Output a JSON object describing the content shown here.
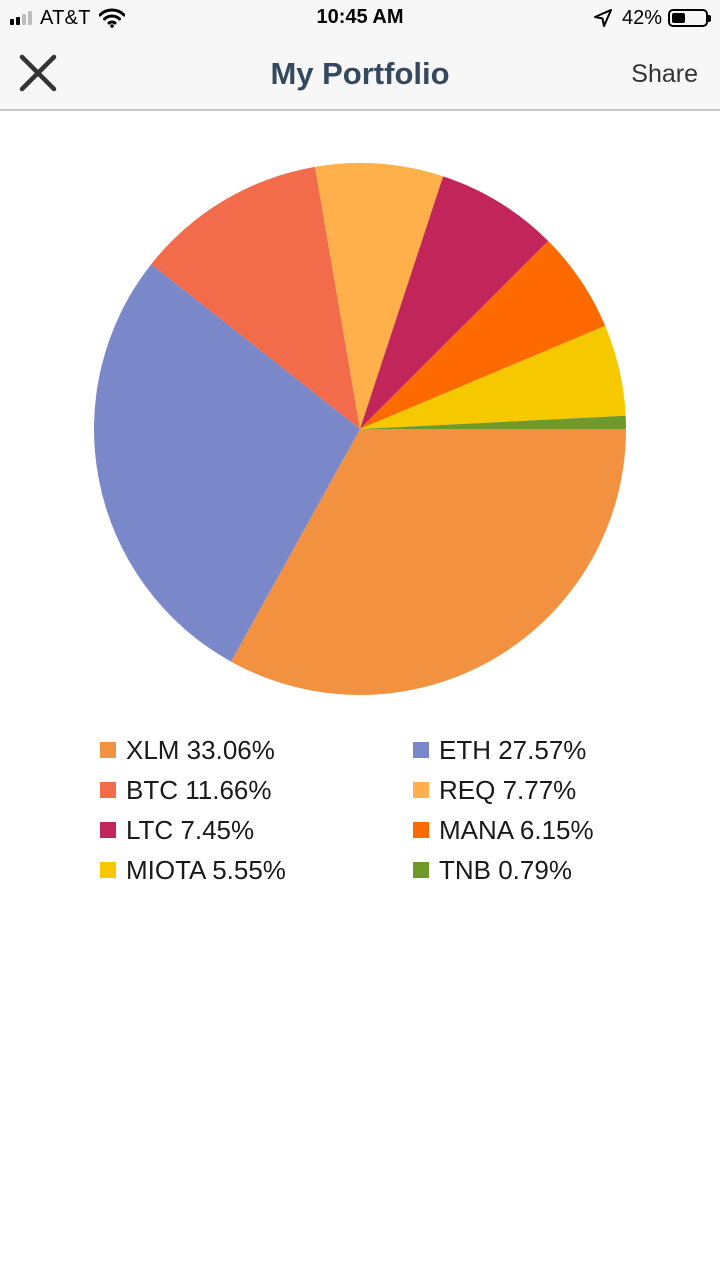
{
  "status_bar": {
    "carrier": "AT&T",
    "time": "10:45 AM",
    "battery_percent": "42%",
    "battery_level": 0.42,
    "signal_bars_active": 2,
    "signal_bars_total": 4
  },
  "nav": {
    "title": "My Portfolio",
    "share_label": "Share",
    "close_icon": "close-icon"
  },
  "chart_data": {
    "type": "pie",
    "title": "",
    "slices": [
      {
        "name": "XLM",
        "value": 33.06,
        "label": "XLM 33.06%",
        "color": "#F29240"
      },
      {
        "name": "ETH",
        "value": 27.57,
        "label": "ETH 27.57%",
        "color": "#7A88CA"
      },
      {
        "name": "BTC",
        "value": 11.66,
        "label": "BTC 11.66%",
        "color": "#F26B4A"
      },
      {
        "name": "REQ",
        "value": 7.77,
        "label": "REQ 7.77%",
        "color": "#FFB04A"
      },
      {
        "name": "LTC",
        "value": 7.45,
        "label": "LTC 7.45%",
        "color": "#C2255A"
      },
      {
        "name": "MANA",
        "value": 6.15,
        "label": "MANA 6.15%",
        "color": "#FF6A00"
      },
      {
        "name": "MIOTA",
        "value": 5.55,
        "label": "MIOTA 5.55%",
        "color": "#F5C800"
      },
      {
        "name": "TNB",
        "value": 0.79,
        "label": "TNB 0.79%",
        "color": "#6F9A2A"
      }
    ],
    "legend_placement": "bottom"
  }
}
